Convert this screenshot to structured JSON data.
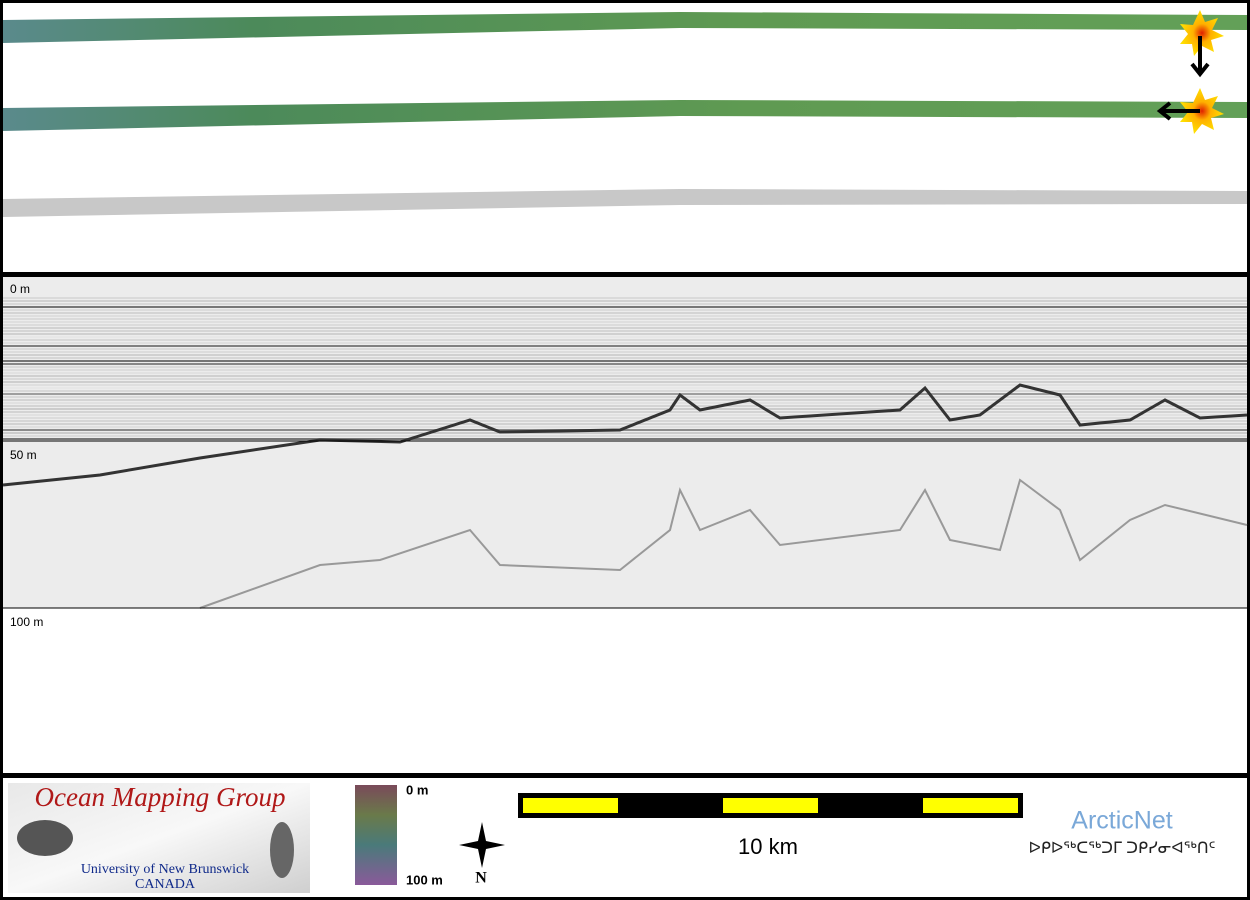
{
  "depth_labels": [
    "0 m",
    "50 m",
    "100 m"
  ],
  "legend": {
    "logo_title": "Ocean Mapping Group",
    "logo_line1": "University of New Brunswick",
    "logo_line2": "CANADA",
    "colorbar_top": "0 m",
    "colorbar_bottom": "100 m",
    "north": "N",
    "scale_label": "10 km",
    "partner": "ArcticNet",
    "partner_syllabics": "ᐅᑭᐅᖅᑕᖅᑐᒥ ᑐᑭᓯᓂᐊᖅᑎᑦ"
  }
}
